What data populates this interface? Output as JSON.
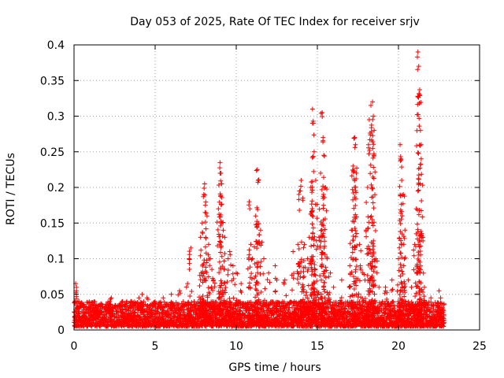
{
  "chart_data": {
    "type": "scatter",
    "title": "Day 053 of 2025, Rate Of TEC Index for receiver srjv",
    "xlabel": "GPS time / hours",
    "ylabel": "ROTI / TECUs",
    "xlim": [
      0,
      25
    ],
    "ylim": [
      0,
      0.4
    ],
    "x_ticks": [
      "0",
      "5",
      "10",
      "15",
      "20",
      "25"
    ],
    "y_ticks": [
      "0",
      "0.05",
      "0.1",
      "0.15",
      "0.2",
      "0.25",
      "0.3",
      "0.35",
      "0.4"
    ],
    "grid": true,
    "marker": "plus",
    "color": "#ff0000",
    "x_coverage": [
      0,
      22.8
    ],
    "background_band": [
      0.005,
      0.04
    ],
    "series": [
      {
        "points": [
          [
            0.1,
            0.065
          ],
          [
            0.15,
            0.055
          ],
          [
            0.3,
            0.04
          ],
          [
            0.5,
            0.035
          ],
          [
            1.0,
            0.03
          ],
          [
            1.5,
            0.03
          ],
          [
            2.2,
            0.04
          ],
          [
            2.3,
            0.045
          ],
          [
            3.0,
            0.04
          ],
          [
            3.5,
            0.04
          ],
          [
            4.0,
            0.045
          ],
          [
            4.2,
            0.05
          ],
          [
            4.5,
            0.045
          ],
          [
            5.0,
            0.04
          ],
          [
            5.5,
            0.045
          ],
          [
            6.0,
            0.05
          ],
          [
            6.5,
            0.055
          ],
          [
            7.0,
            0.065
          ],
          [
            7.1,
            0.1
          ],
          [
            7.2,
            0.115
          ],
          [
            7.8,
            0.13
          ],
          [
            7.9,
            0.15
          ],
          [
            8.0,
            0.19
          ],
          [
            8.05,
            0.205
          ],
          [
            8.1,
            0.175
          ],
          [
            8.2,
            0.16
          ],
          [
            8.3,
            0.12
          ],
          [
            8.4,
            0.1
          ],
          [
            8.5,
            0.085
          ],
          [
            8.6,
            0.07
          ],
          [
            8.9,
            0.17
          ],
          [
            9.0,
            0.235
          ],
          [
            9.05,
            0.22
          ],
          [
            9.1,
            0.205
          ],
          [
            9.2,
            0.14
          ],
          [
            9.3,
            0.13
          ],
          [
            9.5,
            0.1
          ],
          [
            9.6,
            0.11
          ],
          [
            9.8,
            0.09
          ],
          [
            10.0,
            0.08
          ],
          [
            10.3,
            0.065
          ],
          [
            10.8,
            0.18
          ],
          [
            10.9,
            0.12
          ],
          [
            11.0,
            0.1
          ],
          [
            11.2,
            0.16
          ],
          [
            11.3,
            0.225
          ],
          [
            11.35,
            0.21
          ],
          [
            11.5,
            0.14
          ],
          [
            11.7,
            0.1
          ],
          [
            12.0,
            0.08
          ],
          [
            12.4,
            0.09
          ],
          [
            12.5,
            0.07
          ],
          [
            13.0,
            0.07
          ],
          [
            13.5,
            0.11
          ],
          [
            13.8,
            0.12
          ],
          [
            13.9,
            0.195
          ],
          [
            14.0,
            0.21
          ],
          [
            14.1,
            0.185
          ],
          [
            14.2,
            0.12
          ],
          [
            14.4,
            0.1
          ],
          [
            14.5,
            0.13
          ],
          [
            14.6,
            0.2
          ],
          [
            14.7,
            0.31
          ],
          [
            14.75,
            0.29
          ],
          [
            14.8,
            0.25
          ],
          [
            14.9,
            0.21
          ],
          [
            15.1,
            0.13
          ],
          [
            15.2,
            0.22
          ],
          [
            15.3,
            0.305
          ],
          [
            15.35,
            0.27
          ],
          [
            15.4,
            0.245
          ],
          [
            15.5,
            0.2
          ],
          [
            15.6,
            0.1
          ],
          [
            15.8,
            0.08
          ],
          [
            16.0,
            0.06
          ],
          [
            16.5,
            0.07
          ],
          [
            17.0,
            0.09
          ],
          [
            17.1,
            0.14
          ],
          [
            17.2,
            0.23
          ],
          [
            17.3,
            0.27
          ],
          [
            17.35,
            0.26
          ],
          [
            17.4,
            0.22
          ],
          [
            17.6,
            0.12
          ],
          [
            17.8,
            0.08
          ],
          [
            18.0,
            0.14
          ],
          [
            18.1,
            0.2
          ],
          [
            18.2,
            0.295
          ],
          [
            18.3,
            0.315
          ],
          [
            18.4,
            0.32
          ],
          [
            18.45,
            0.3
          ],
          [
            18.5,
            0.28
          ],
          [
            18.6,
            0.1
          ],
          [
            18.8,
            0.06
          ],
          [
            19.2,
            0.06
          ],
          [
            19.6,
            0.07
          ],
          [
            20.0,
            0.1
          ],
          [
            20.1,
            0.26
          ],
          [
            20.15,
            0.24
          ],
          [
            20.2,
            0.21
          ],
          [
            20.3,
            0.19
          ],
          [
            20.4,
            0.14
          ],
          [
            20.6,
            0.07
          ],
          [
            20.8,
            0.06
          ],
          [
            21.0,
            0.12
          ],
          [
            21.1,
            0.17
          ],
          [
            21.2,
            0.39
          ],
          [
            21.25,
            0.37
          ],
          [
            21.3,
            0.33
          ],
          [
            21.35,
            0.28
          ],
          [
            21.4,
            0.24
          ],
          [
            21.5,
            0.13
          ],
          [
            21.6,
            0.06
          ],
          [
            22.0,
            0.045
          ],
          [
            22.5,
            0.055
          ],
          [
            22.6,
            0.045
          ],
          [
            22.8,
            0.02
          ]
        ]
      }
    ]
  }
}
